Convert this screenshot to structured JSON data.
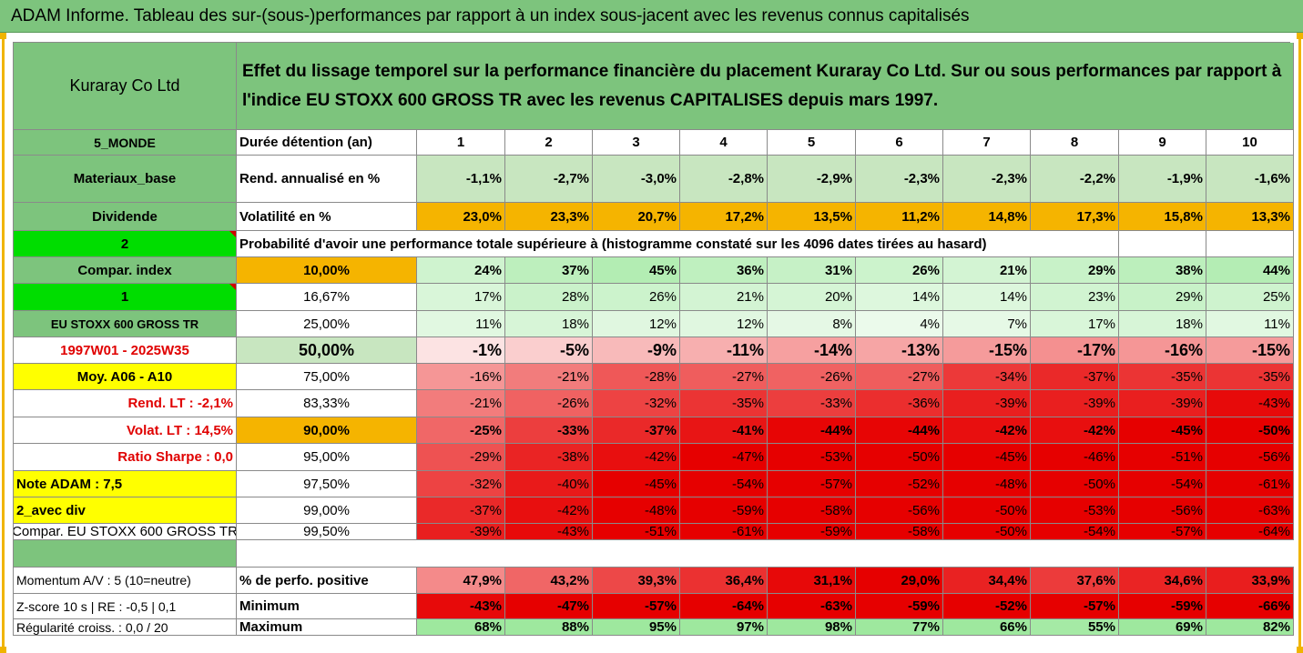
{
  "title": "ADAM Informe. Tableau des sur-(sous-)performances par rapport à un index sous-jacent avec les revenus connus capitalisés",
  "company": "Kuraray Co Ltd",
  "header_text": "Effet du lissage temporel sur la performance financière du placement Kuraray Co Ltd. Sur ou sous performances par rapport à l'indice EU STOXX 600 GROSS TR avec les revenus CAPITALISES depuis mars 1997.",
  "left_labels": {
    "region": "5_MONDE",
    "sector": "Materiaux_base",
    "dividende": "Dividende",
    "num2": "2",
    "compar_index": "Compar. index",
    "num1": "1",
    "index_name": "EU STOXX 600 GROSS TR",
    "period": "1997W01 - 2025W35",
    "moy": "Moy. A06 - A10",
    "rend_lt": "Rend. LT :   -2,1%",
    "volat_lt": "Volat. LT :   14,5%",
    "sharpe": "Ratio Sharpe :   0,0",
    "note": "Note ADAM : 7,5",
    "avec_div": "2_avec div",
    "compar_full": "Compar. EU STOXX 600 GROSS TR",
    "momentum": "Momentum A/V : 5 (10=neutre)",
    "zscore": "Z-score 10 s  | RE : -0,5  | 0,1",
    "regularite": "Régularité croiss. : 0,0 / 20"
  },
  "row_labels": {
    "duree": "Durée détention (an)",
    "rend": "Rend. annualisé en %",
    "volat": "Volatilité en %",
    "proba": "Probabilité d'avoir une performance totale supérieure à (histogramme constaté sur les 4096 dates tirées au hasard)",
    "pct_pos": "% de perfo. positive",
    "minimum": "Minimum",
    "maximum": "Maximum"
  },
  "years": [
    "1",
    "2",
    "3",
    "4",
    "5",
    "6",
    "7",
    "8",
    "9",
    "10"
  ],
  "rend": [
    "-1,1%",
    "-2,7%",
    "-3,0%",
    "-2,8%",
    "-2,9%",
    "-2,3%",
    "-2,3%",
    "-2,2%",
    "-1,9%",
    "-1,6%"
  ],
  "volat": [
    "23,0%",
    "23,3%",
    "20,7%",
    "17,2%",
    "13,5%",
    "11,2%",
    "14,8%",
    "17,3%",
    "15,8%",
    "13,3%"
  ],
  "percentile_rows": [
    {
      "p": "10,00%",
      "vals": [
        "24%",
        "37%",
        "45%",
        "36%",
        "31%",
        "26%",
        "21%",
        "29%",
        "38%",
        "44%"
      ]
    },
    {
      "p": "16,67%",
      "vals": [
        "17%",
        "28%",
        "26%",
        "21%",
        "20%",
        "14%",
        "14%",
        "23%",
        "29%",
        "25%"
      ]
    },
    {
      "p": "25,00%",
      "vals": [
        "11%",
        "18%",
        "12%",
        "12%",
        "8%",
        "4%",
        "7%",
        "17%",
        "18%",
        "11%"
      ]
    },
    {
      "p": "50,00%",
      "vals": [
        "-1%",
        "-5%",
        "-9%",
        "-11%",
        "-14%",
        "-13%",
        "-15%",
        "-17%",
        "-16%",
        "-15%"
      ]
    },
    {
      "p": "75,00%",
      "vals": [
        "-16%",
        "-21%",
        "-28%",
        "-27%",
        "-26%",
        "-27%",
        "-34%",
        "-37%",
        "-35%",
        "-35%"
      ]
    },
    {
      "p": "83,33%",
      "vals": [
        "-21%",
        "-26%",
        "-32%",
        "-35%",
        "-33%",
        "-36%",
        "-39%",
        "-39%",
        "-39%",
        "-43%"
      ]
    },
    {
      "p": "90,00%",
      "vals": [
        "-25%",
        "-33%",
        "-37%",
        "-41%",
        "-44%",
        "-44%",
        "-42%",
        "-42%",
        "-45%",
        "-50%"
      ]
    },
    {
      "p": "95,00%",
      "vals": [
        "-29%",
        "-38%",
        "-42%",
        "-47%",
        "-53%",
        "-50%",
        "-45%",
        "-46%",
        "-51%",
        "-56%"
      ]
    },
    {
      "p": "97,50%",
      "vals": [
        "-32%",
        "-40%",
        "-45%",
        "-54%",
        "-57%",
        "-52%",
        "-48%",
        "-50%",
        "-54%",
        "-61%"
      ]
    },
    {
      "p": "99,00%",
      "vals": [
        "-37%",
        "-42%",
        "-48%",
        "-59%",
        "-58%",
        "-56%",
        "-50%",
        "-53%",
        "-56%",
        "-63%"
      ]
    },
    {
      "p": "99,50%",
      "vals": [
        "-39%",
        "-43%",
        "-51%",
        "-61%",
        "-59%",
        "-58%",
        "-50%",
        "-54%",
        "-57%",
        "-64%"
      ]
    }
  ],
  "pct_pos": [
    "47,9%",
    "43,2%",
    "39,3%",
    "36,4%",
    "31,1%",
    "29,0%",
    "34,4%",
    "37,6%",
    "34,6%",
    "33,9%"
  ],
  "minimum": [
    "-43%",
    "-47%",
    "-57%",
    "-64%",
    "-63%",
    "-59%",
    "-52%",
    "-57%",
    "-59%",
    "-66%"
  ],
  "maximum": [
    "68%",
    "88%",
    "95%",
    "97%",
    "98%",
    "77%",
    "66%",
    "55%",
    "69%",
    "82%"
  ],
  "colors": {
    "header_green": "#7dc47d",
    "pale_green": "#c8e6c0",
    "orange": "#f5b400",
    "yellow": "#ffff00",
    "bright_green": "#00dd00",
    "positive_max": "#9ee89e",
    "negative_max": "#e60000",
    "label_red": "#e00000"
  }
}
